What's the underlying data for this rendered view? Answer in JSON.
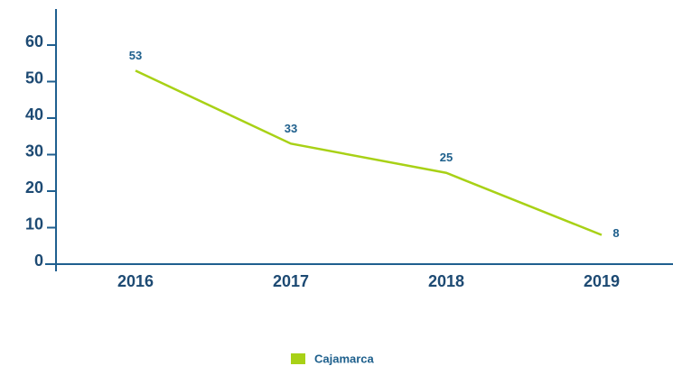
{
  "chart_data": {
    "type": "line",
    "categories": [
      "2016",
      "2017",
      "2018",
      "2019"
    ],
    "series": [
      {
        "name": "Cajamarca",
        "color": "#a8d116",
        "values": [
          53,
          33,
          25,
          8
        ]
      }
    ],
    "ylim": [
      0,
      60
    ],
    "yticks": [
      0,
      10,
      20,
      30,
      40,
      50,
      60
    ],
    "axis_color": "#1f5f8f",
    "legend": "bottom"
  }
}
